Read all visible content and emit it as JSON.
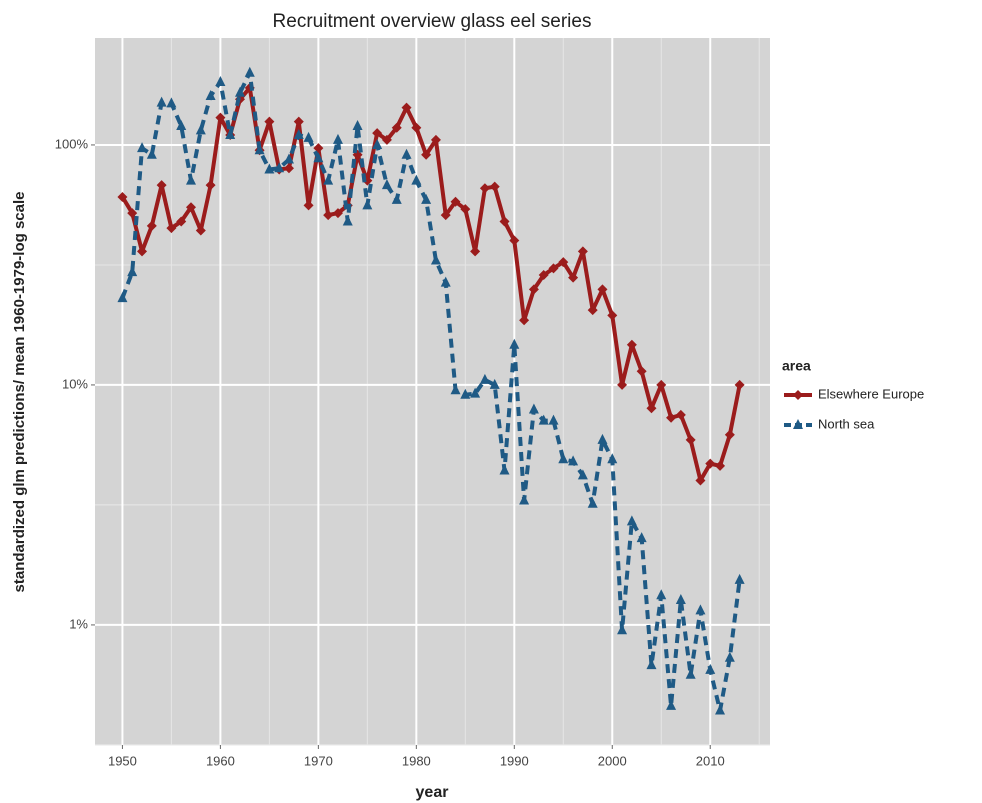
{
  "chart_data": {
    "type": "line",
    "title": "Recruitment overview glass eel series",
    "x_label": "year",
    "y_label": "standardized glm predictions/ mean 1960-1979-log scale",
    "legend_title": "area",
    "legend_position": "right",
    "log_y": true,
    "grid": true,
    "x": [
      1950,
      1951,
      1952,
      1953,
      1954,
      1955,
      1956,
      1957,
      1958,
      1959,
      1960,
      1961,
      1962,
      1963,
      1964,
      1965,
      1966,
      1967,
      1968,
      1969,
      1970,
      1971,
      1972,
      1973,
      1974,
      1975,
      1976,
      1977,
      1978,
      1979,
      1980,
      1981,
      1982,
      1983,
      1984,
      1985,
      1986,
      1987,
      1988,
      1989,
      1990,
      1991,
      1992,
      1993,
      1994,
      1995,
      1996,
      1997,
      1998,
      1999,
      2000,
      2001,
      2002,
      2003,
      2004,
      2005,
      2006,
      2007,
      2008,
      2009,
      2010,
      2011,
      2012,
      2013
    ],
    "series": [
      {
        "name": "Elsewhere Europe",
        "color": "#9b1c1c",
        "marker": "diamond",
        "linestyle": "solid",
        "values": [
          60.7,
          52,
          36,
          46,
          68,
          45,
          48,
          55,
          44,
          68,
          130,
          110,
          155,
          173,
          95,
          125,
          79,
          80,
          125,
          56,
          97,
          51,
          52,
          56,
          91,
          71,
          112,
          105,
          118,
          143,
          118,
          91,
          105,
          51,
          58,
          54,
          36,
          66,
          67,
          48,
          40,
          18.6,
          25,
          28.7,
          30.6,
          32.5,
          28,
          36,
          20.5,
          25,
          19.5,
          10,
          14.7,
          11.4,
          8,
          10,
          7.3,
          7.5,
          5.9,
          4,
          4.7,
          4.6,
          6.2,
          10
        ]
      },
      {
        "name": "North sea",
        "color": "#1f5a85",
        "marker": "triangle",
        "linestyle": "dashed",
        "values": [
          23,
          29.5,
          97,
          91,
          150,
          149,
          120,
          71,
          115,
          160,
          183,
          110,
          165,
          200,
          95,
          79,
          80,
          87,
          110,
          107,
          88,
          71,
          105,
          48,
          120,
          56,
          100,
          68,
          59,
          91,
          71,
          59,
          33,
          26.7,
          9.5,
          9.1,
          9.2,
          10.5,
          10,
          4.4,
          14.7,
          3.3,
          7.9,
          7.1,
          7.1,
          4.9,
          4.8,
          4.2,
          3.2,
          5.9,
          4.9,
          0.95,
          2.7,
          2.3,
          0.68,
          1.33,
          0.46,
          1.27,
          0.62,
          1.15,
          0.65,
          0.44,
          0.73,
          1.54
        ]
      }
    ],
    "xlim": [
      1947.2,
      2016.1
    ],
    "xticks": [
      1950,
      1960,
      1970,
      1980,
      1990,
      2000,
      2010
    ],
    "ylim": [
      0.316,
      279
    ],
    "yticks": [
      {
        "value": 1,
        "label": "1%"
      },
      {
        "value": 10,
        "label": "10%"
      },
      {
        "value": 100,
        "label": "100%"
      }
    ]
  }
}
